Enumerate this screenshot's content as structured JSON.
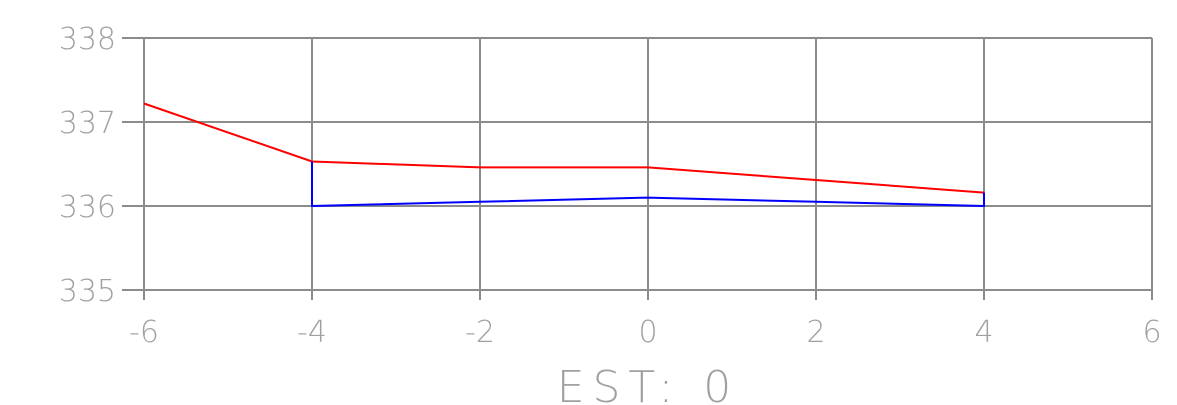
{
  "chart_data": {
    "type": "line",
    "title": "",
    "caption": "EST: 0",
    "xlabel": "",
    "ylabel": "",
    "xlim": [
      -6,
      6
    ],
    "ylim": [
      335,
      338
    ],
    "x_ticks": [
      -6,
      -4,
      -2,
      0,
      2,
      4,
      6
    ],
    "y_ticks": [
      335,
      336,
      337,
      338
    ],
    "x_tick_labels": [
      "-6",
      "-4",
      "-2",
      "0",
      "2",
      "4",
      "6"
    ],
    "y_tick_labels": [
      "335",
      "336",
      "337",
      "338"
    ],
    "grid": true,
    "series": [
      {
        "color": "#ff0000",
        "points": [
          [
            -6,
            337.22
          ],
          [
            -4,
            336.53
          ],
          [
            -2,
            336.46
          ],
          [
            0,
            336.46
          ],
          [
            2,
            336.31
          ],
          [
            4,
            336.16
          ]
        ]
      },
      {
        "color": "#0000ff",
        "points": [
          [
            -4,
            336.53
          ],
          [
            -4,
            336.0
          ],
          [
            -2,
            336.05
          ],
          [
            0,
            336.1
          ],
          [
            2,
            336.05
          ],
          [
            4,
            336.0
          ],
          [
            4,
            336.16
          ]
        ]
      }
    ]
  }
}
